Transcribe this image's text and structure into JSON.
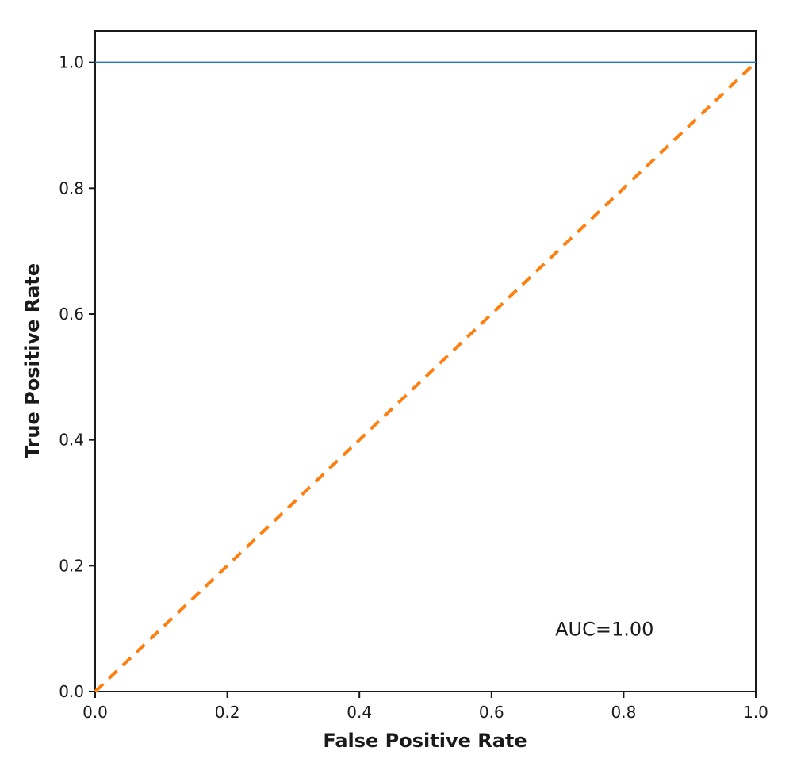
{
  "chart_data": {
    "type": "line",
    "xlabel": "False Positive Rate",
    "ylabel": "True Positive Rate",
    "xlim": [
      0,
      1
    ],
    "ylim": [
      0,
      1.05
    ],
    "xticks": [
      "0.0",
      "0.2",
      "0.4",
      "0.6",
      "0.8",
      "1.0"
    ],
    "yticks": [
      "0.0",
      "0.2",
      "0.4",
      "0.6",
      "0.8",
      "1.0"
    ],
    "grid": false,
    "series": [
      {
        "x": [
          0,
          1
        ],
        "y": [
          1,
          1
        ],
        "color": "#1f77b4",
        "style": "solid"
      },
      {
        "x": [
          0,
          1
        ],
        "y": [
          0,
          1
        ],
        "color": "#ff7f0e",
        "style": "dashed"
      }
    ],
    "annotation": {
      "text": "AUC=1.00",
      "x": 0.7,
      "y": 0.1
    }
  }
}
